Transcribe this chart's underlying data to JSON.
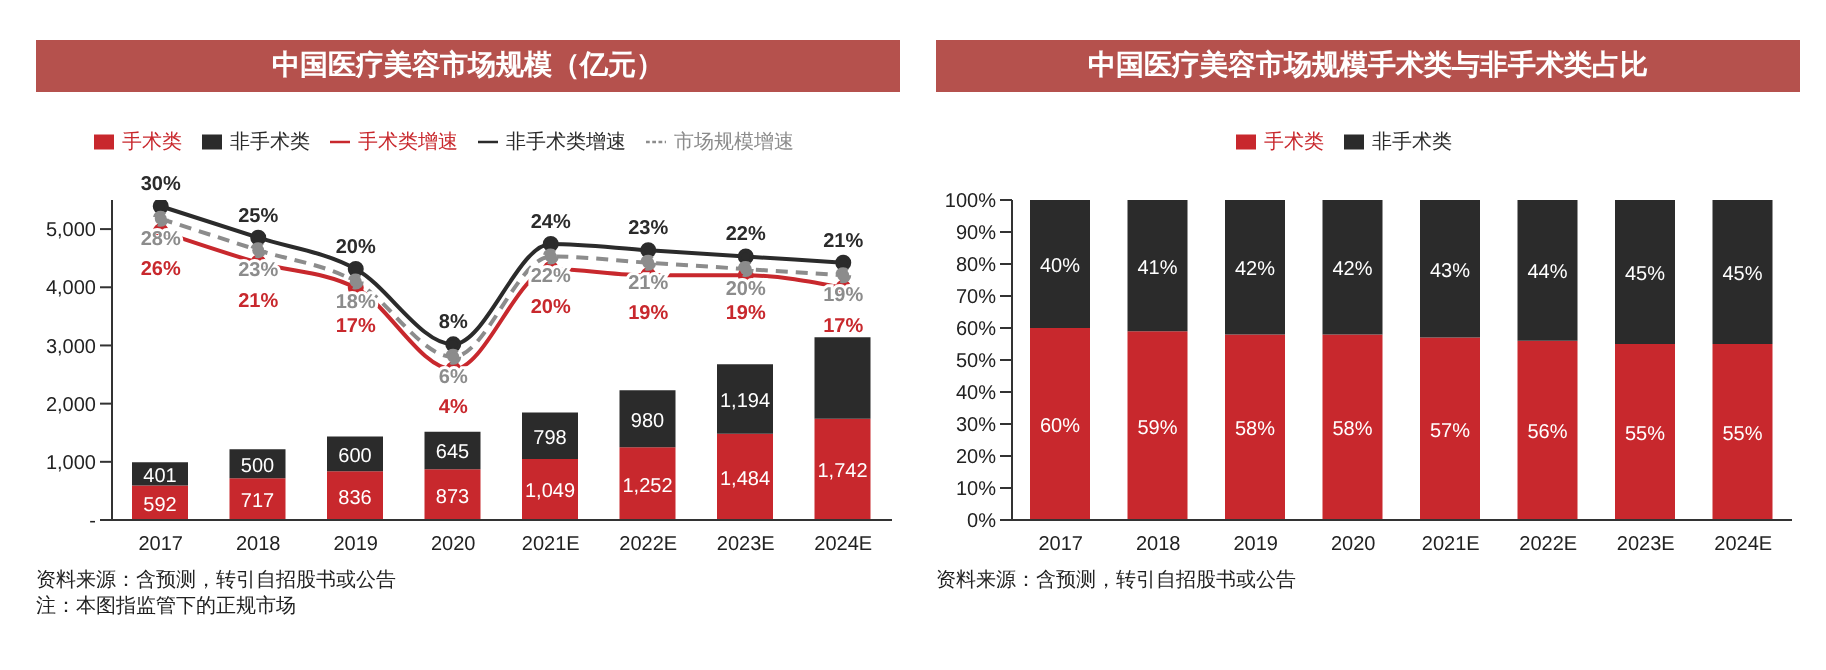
{
  "chart_data": [
    {
      "type": "bar",
      "title": "中国医疗美容市场规模（亿元）",
      "categories": [
        "2017",
        "2018",
        "2019",
        "2020",
        "2021E",
        "2022E",
        "2023E",
        "2024E"
      ],
      "stacked": true,
      "legend": "top",
      "ylim": [
        0,
        5500
      ],
      "yticks": [
        {
          "value": 0,
          "label": "-"
        },
        {
          "value": 1000,
          "label": "1,000"
        },
        {
          "value": 2000,
          "label": "2,000"
        },
        {
          "value": 3000,
          "label": "3,000"
        },
        {
          "value": 4000,
          "label": "4,000"
        },
        {
          "value": 5000,
          "label": "5,000"
        }
      ],
      "y2lim": [
        -20,
        31
      ],
      "series": [
        {
          "name": "手术类",
          "color": "#c8282d",
          "values": [
            592,
            717,
            836,
            873,
            1049,
            1252,
            1484,
            1742
          ],
          "value_labels": [
            "592",
            "717",
            "836",
            "873",
            "1,049",
            "1,252",
            "1,484",
            "1,742"
          ]
        },
        {
          "name": "非手术类",
          "color": "#2b2b2b",
          "values": [
            401,
            500,
            600,
            645,
            798,
            980,
            1194,
            1400
          ],
          "value_labels": [
            "401",
            "500",
            "600",
            "645",
            "798",
            "980",
            "1,194",
            null
          ]
        },
        {
          "name": "手术类增速",
          "type": "line",
          "axis": "y2",
          "color": "#c8282d",
          "marker": "circle",
          "values": [
            26,
            21,
            17,
            4,
            20,
            19,
            19,
            17
          ],
          "value_labels": [
            "26%",
            "21%",
            "17%",
            "4%",
            "20%",
            "19%",
            "19%",
            "17%"
          ]
        },
        {
          "name": "非手术类增速",
          "type": "line",
          "axis": "y2",
          "color": "#2b2b2b",
          "marker": "circle",
          "values": [
            30,
            25,
            20,
            8,
            24,
            23,
            22,
            21
          ],
          "value_labels": [
            "30%",
            "25%",
            "20%",
            "8%",
            "24%",
            "23%",
            "22%",
            "21%"
          ]
        },
        {
          "name": "市场规模增速",
          "type": "line",
          "axis": "y2",
          "color": "#8c8c8c",
          "marker": "circle",
          "line_style": "dashed",
          "values": [
            28,
            23,
            18,
            6,
            22,
            21,
            20,
            19
          ],
          "value_labels": [
            "28%",
            "23%",
            "18%",
            "6%",
            "22%",
            "21%",
            "20%",
            "19%"
          ]
        }
      ],
      "annotations": [
        "资料来源：含预测，转引自招股书或公告",
        "注：本图指监管下的正规市场"
      ]
    },
    {
      "type": "bar",
      "title": "中国医疗美容市场规模手术类与非手术类占比",
      "categories": [
        "2017",
        "2018",
        "2019",
        "2020",
        "2021E",
        "2022E",
        "2023E",
        "2024E"
      ],
      "stacked": true,
      "legend": "top",
      "ylim": [
        0,
        100
      ],
      "yticks": [
        {
          "value": 0,
          "label": "0%"
        },
        {
          "value": 10,
          "label": "10%"
        },
        {
          "value": 20,
          "label": "20%"
        },
        {
          "value": 30,
          "label": "30%"
        },
        {
          "value": 40,
          "label": "40%"
        },
        {
          "value": 50,
          "label": "50%"
        },
        {
          "value": 60,
          "label": "60%"
        },
        {
          "value": 70,
          "label": "70%"
        },
        {
          "value": 80,
          "label": "80%"
        },
        {
          "value": 90,
          "label": "90%"
        },
        {
          "value": 100,
          "label": "100%"
        }
      ],
      "series": [
        {
          "name": "手术类",
          "color": "#c8282d",
          "values": [
            60,
            59,
            58,
            58,
            57,
            56,
            55,
            55
          ],
          "value_labels": [
            "60%",
            "59%",
            "58%",
            "58%",
            "57%",
            "56%",
            "55%",
            "55%"
          ]
        },
        {
          "name": "非手术类",
          "color": "#2b2b2b",
          "values": [
            40,
            41,
            42,
            42,
            43,
            44,
            45,
            45
          ],
          "value_labels": [
            "40%",
            "41%",
            "42%",
            "42%",
            "43%",
            "44%",
            "45%",
            "45%"
          ]
        }
      ],
      "annotations": [
        "资料来源：含预测，转引自招股书或公告"
      ]
    }
  ]
}
